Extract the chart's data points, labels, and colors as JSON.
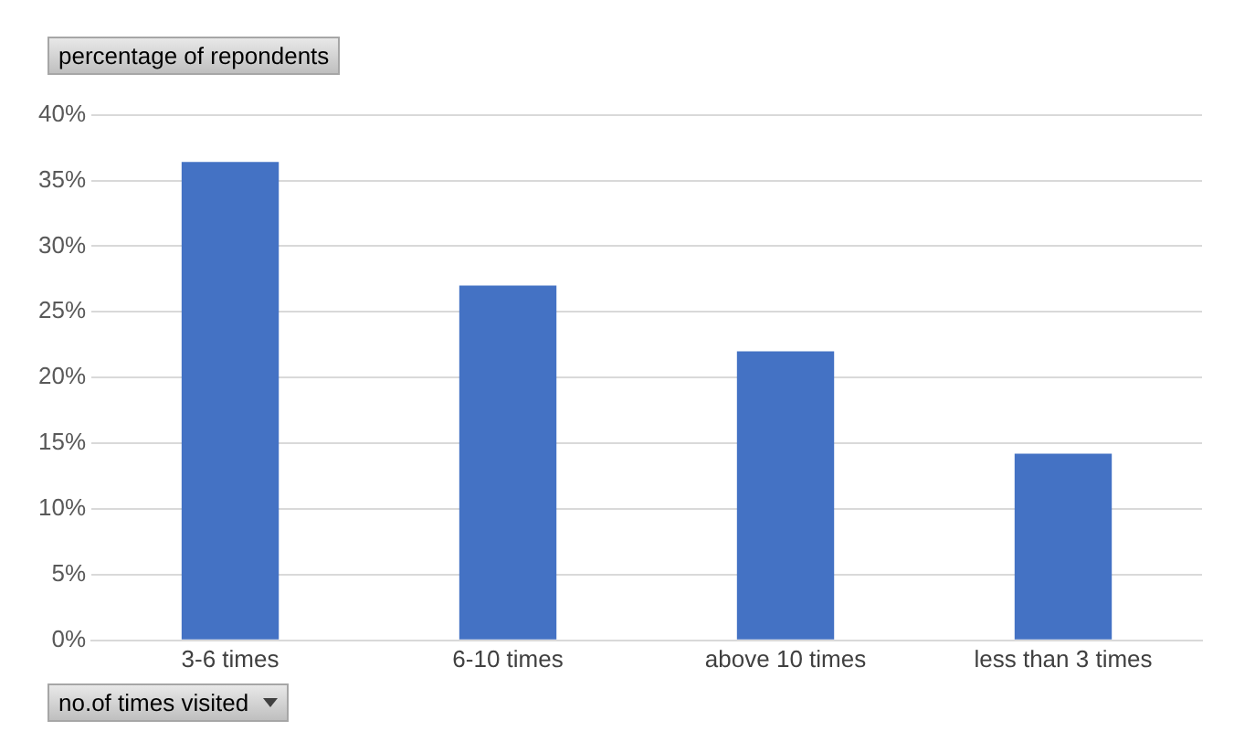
{
  "chart_data": {
    "type": "bar",
    "ylabel": "percentage  of repondents",
    "xlabel": "no.of times visited",
    "categories": [
      "3-6 times",
      "6-10 times",
      "above 10 times",
      "less than 3 times"
    ],
    "values": [
      36.4,
      27,
      22,
      14.2
    ],
    "color": "#4472c4",
    "ylim": [
      0,
      40
    ],
    "yticks": [
      {
        "value": 0,
        "label": "0%"
      },
      {
        "value": 5,
        "label": "5%"
      },
      {
        "value": 10,
        "label": "10%"
      },
      {
        "value": 15,
        "label": "15%"
      },
      {
        "value": 20,
        "label": "20%"
      },
      {
        "value": 25,
        "label": "25%"
      },
      {
        "value": 30,
        "label": "30%"
      },
      {
        "value": 35,
        "label": "35%"
      },
      {
        "value": 40,
        "label": "40%"
      }
    ],
    "grid": "y",
    "legend": false
  }
}
